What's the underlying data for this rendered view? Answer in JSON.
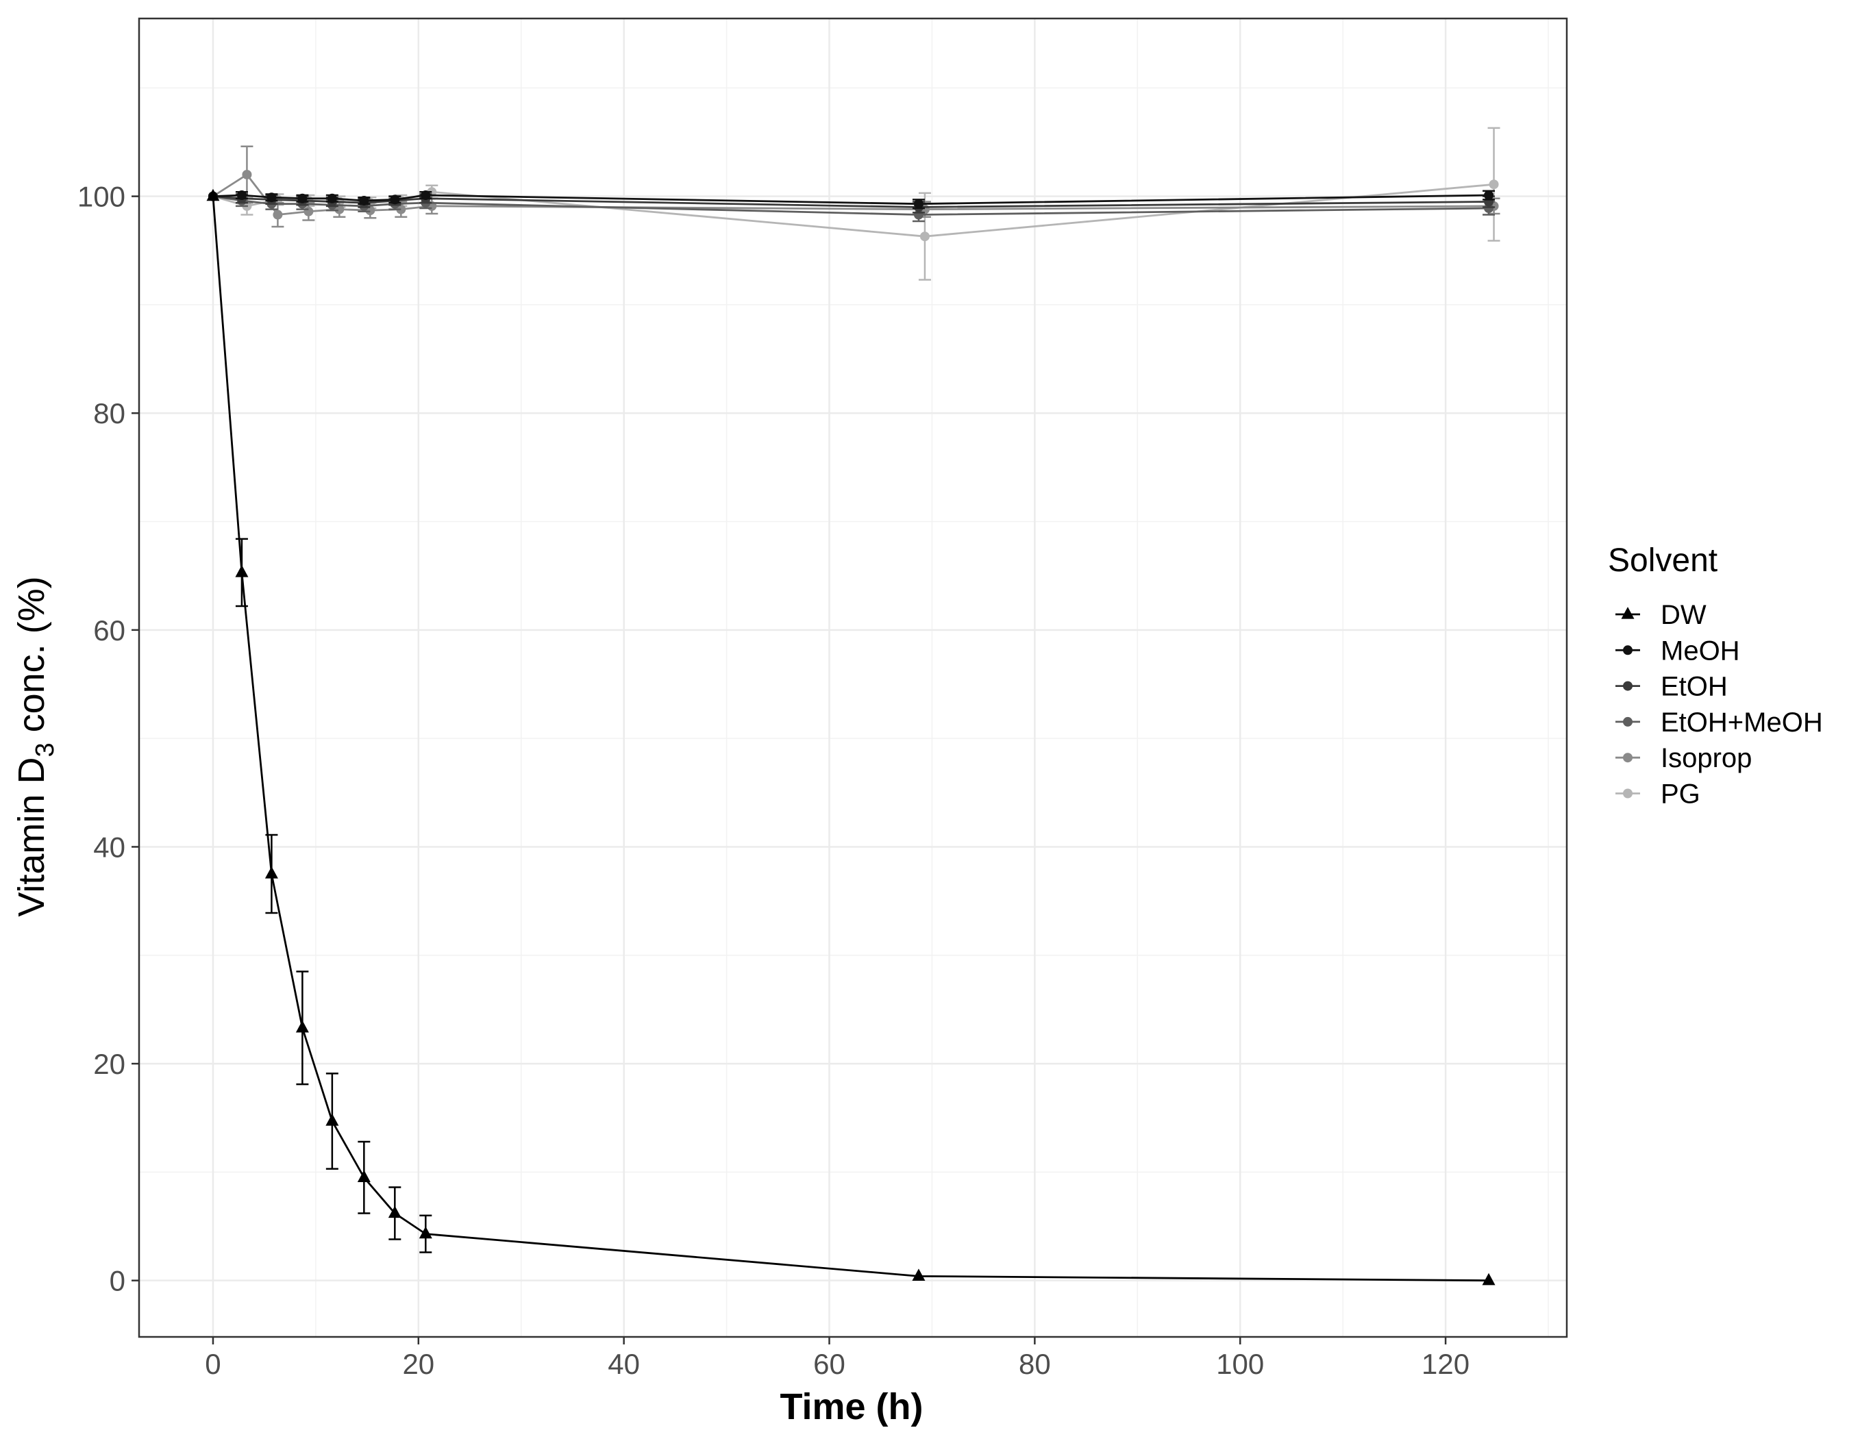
{
  "chart_data": {
    "type": "line",
    "title": "",
    "xlabel": "Time (h)",
    "ylabel_main": "Vitamin D",
    "ylabel_sub": "3",
    "ylabel_tail": " conc. (%)",
    "xlim": [
      -7.2,
      131.8
    ],
    "ylim": [
      -5.2,
      116.4
    ],
    "x_ticks": [
      0,
      20,
      40,
      60,
      80,
      100,
      120
    ],
    "y_ticks": [
      0,
      20,
      40,
      60,
      80,
      100
    ],
    "grid": true,
    "legend": {
      "title": "Solvent",
      "position": "right"
    },
    "series": [
      {
        "name": "DW",
        "color": "#000000",
        "marker": "triangle",
        "x": [
          0,
          2.8,
          5.7,
          8.7,
          11.6,
          14.7,
          17.7,
          20.7,
          68.7,
          124.2
        ],
        "y": [
          100,
          65.3,
          37.5,
          23.3,
          14.7,
          9.5,
          6.2,
          4.3,
          0.4,
          0.0
        ],
        "err": [
          0,
          3.1,
          3.6,
          5.2,
          4.4,
          3.3,
          2.4,
          1.7,
          0,
          0
        ]
      },
      {
        "name": "MeOH",
        "color": "#111111",
        "marker": "circle",
        "x": [
          0,
          2.8,
          5.7,
          8.7,
          11.6,
          14.7,
          17.7,
          20.7,
          68.7,
          124.2
        ],
        "y": [
          100,
          100.1,
          99.9,
          99.8,
          99.8,
          99.6,
          99.7,
          100.1,
          99.3,
          100.1
        ],
        "err": [
          0,
          0.3,
          0.3,
          0.3,
          0.3,
          0.3,
          0.3,
          0.3,
          0.4,
          0.4
        ]
      },
      {
        "name": "EtOH",
        "color": "#3a3a3a",
        "marker": "circle",
        "x": [
          0,
          2.8,
          5.7,
          8.7,
          11.6,
          14.7,
          17.7,
          20.7,
          68.7,
          124.2
        ],
        "y": [
          100,
          99.8,
          99.7,
          99.6,
          99.5,
          99.4,
          99.6,
          99.8,
          99.0,
          99.5
        ],
        "err": [
          0,
          0.4,
          0.4,
          0.4,
          0.4,
          0.4,
          0.4,
          0.4,
          0.5,
          0.5
        ]
      },
      {
        "name": "EtOH+MeOH",
        "color": "#5e5e5e",
        "marker": "circle",
        "x": [
          0,
          2.8,
          5.7,
          8.7,
          11.6,
          14.7,
          17.7,
          20.7,
          68.7,
          124.2
        ],
        "y": [
          100,
          99.6,
          99.3,
          99.3,
          99.2,
          99.1,
          99.3,
          99.4,
          98.3,
          98.9
        ],
        "err": [
          0,
          0.5,
          0.5,
          0.5,
          0.5,
          0.5,
          0.5,
          0.5,
          0.6,
          0.6
        ]
      },
      {
        "name": "Isoprop",
        "color": "#8a8a8a",
        "marker": "circle",
        "x": [
          0,
          3.3,
          6.3,
          9.3,
          12.3,
          15.3,
          18.3,
          21.3,
          69.3,
          124.7
        ],
        "y": [
          100,
          102.0,
          98.3,
          98.6,
          98.8,
          98.7,
          98.8,
          99.1,
          98.8,
          99.1
        ],
        "err": [
          0,
          2.6,
          1.1,
          0.8,
          0.7,
          0.7,
          0.7,
          0.7,
          0.7,
          0.7
        ]
      },
      {
        "name": "PG",
        "color": "#b5b5b5",
        "marker": "circle",
        "x": [
          0,
          3.3,
          6.3,
          9.3,
          12.3,
          15.3,
          18.3,
          21.3,
          69.3,
          124.7
        ],
        "y": [
          100,
          99.1,
          99.7,
          99.6,
          99.5,
          99.4,
          99.6,
          100.4,
          96.3,
          101.1
        ],
        "err": [
          0,
          0.8,
          0.5,
          0.5,
          0.5,
          0.5,
          0.5,
          0.6,
          4.0,
          5.2
        ]
      }
    ]
  }
}
